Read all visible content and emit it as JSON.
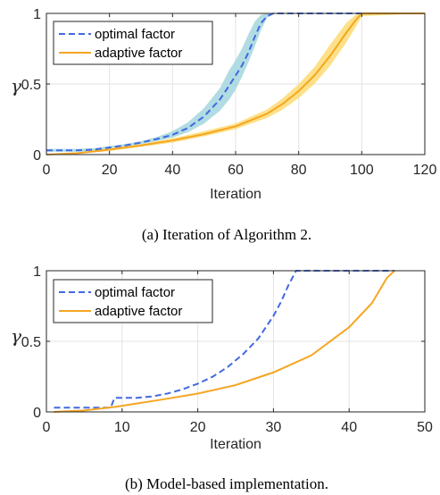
{
  "chart_data": [
    {
      "type": "line",
      "caption": "(a) Iteration of Algorithm 2.",
      "xlabel": "Iteration",
      "ylabel": "γ",
      "xlim": [
        0,
        120
      ],
      "ylim": [
        0,
        1
      ],
      "xticks": [
        "0",
        "20",
        "40",
        "60",
        "80",
        "100",
        "120"
      ],
      "yticks": [
        "0",
        "0.5",
        "1"
      ],
      "grid": true,
      "legend_position": "top-left",
      "series": [
        {
          "name": "optimal factor",
          "style": "dashed",
          "color": "#4169e1",
          "band_color": "#9ed3dc",
          "x": [
            0,
            10,
            15,
            20,
            25,
            30,
            35,
            40,
            45,
            50,
            55,
            58,
            60,
            62,
            64,
            66,
            68,
            70,
            72,
            120
          ],
          "y": [
            0.03,
            0.03,
            0.035,
            0.05,
            0.065,
            0.085,
            0.11,
            0.14,
            0.19,
            0.27,
            0.39,
            0.49,
            0.56,
            0.63,
            0.72,
            0.83,
            0.93,
            0.98,
            1.0,
            1.0
          ],
          "band_lower": [
            0.02,
            0.02,
            0.025,
            0.04,
            0.055,
            0.075,
            0.095,
            0.12,
            0.16,
            0.22,
            0.31,
            0.39,
            0.46,
            0.55,
            0.65,
            0.76,
            0.88,
            0.97,
            1.0,
            1.0
          ],
          "band_upper": [
            0.04,
            0.04,
            0.045,
            0.06,
            0.075,
            0.095,
            0.125,
            0.165,
            0.23,
            0.33,
            0.47,
            0.6,
            0.67,
            0.75,
            0.85,
            0.94,
            0.99,
            1.0,
            1.0,
            1.0
          ]
        },
        {
          "name": "adaptive factor",
          "style": "solid",
          "color": "#f5a623",
          "band_color": "#fcd96a",
          "x": [
            0,
            10,
            20,
            30,
            40,
            50,
            60,
            70,
            75,
            80,
            85,
            90,
            95,
            98,
            100,
            120
          ],
          "y": [
            0.0,
            0.01,
            0.035,
            0.065,
            0.1,
            0.145,
            0.2,
            0.29,
            0.36,
            0.45,
            0.56,
            0.7,
            0.86,
            0.95,
            1.0,
            1.0
          ],
          "band_lower": [
            0.0,
            0.005,
            0.025,
            0.055,
            0.085,
            0.13,
            0.18,
            0.26,
            0.32,
            0.4,
            0.5,
            0.63,
            0.79,
            0.9,
            0.98,
            1.0
          ],
          "band_upper": [
            0.0,
            0.015,
            0.045,
            0.075,
            0.115,
            0.165,
            0.22,
            0.32,
            0.4,
            0.5,
            0.62,
            0.78,
            0.93,
            0.99,
            1.0,
            1.0
          ]
        }
      ]
    },
    {
      "type": "line",
      "caption": "(b) Model-based implementation.",
      "xlabel": "Iteration",
      "ylabel": "γ",
      "xlim": [
        0,
        50
      ],
      "ylim": [
        0,
        1
      ],
      "xticks": [
        "0",
        "10",
        "20",
        "30",
        "40",
        "50"
      ],
      "yticks": [
        "0",
        "0.5",
        "1"
      ],
      "grid": true,
      "legend_position": "top-left",
      "series": [
        {
          "name": "optimal factor",
          "style": "dashed",
          "color": "#4169e1",
          "x": [
            1,
            8.5,
            9,
            10,
            12,
            14,
            16,
            18,
            20,
            22,
            24,
            26,
            28,
            30,
            31,
            32,
            33,
            46
          ],
          "y": [
            0.03,
            0.03,
            0.1,
            0.1,
            0.1,
            0.11,
            0.13,
            0.16,
            0.2,
            0.25,
            0.32,
            0.41,
            0.52,
            0.68,
            0.78,
            0.9,
            1.0,
            1.0
          ],
          "note_start": 0
        },
        {
          "name": "adaptive factor",
          "style": "solid",
          "color": "#f5a623",
          "x": [
            1,
            5,
            9,
            12,
            15,
            20,
            25,
            30,
            35,
            40,
            43,
            45,
            46
          ],
          "y": [
            0.0,
            0.01,
            0.035,
            0.06,
            0.085,
            0.13,
            0.19,
            0.28,
            0.4,
            0.6,
            0.77,
            0.95,
            1.0
          ]
        }
      ]
    }
  ]
}
